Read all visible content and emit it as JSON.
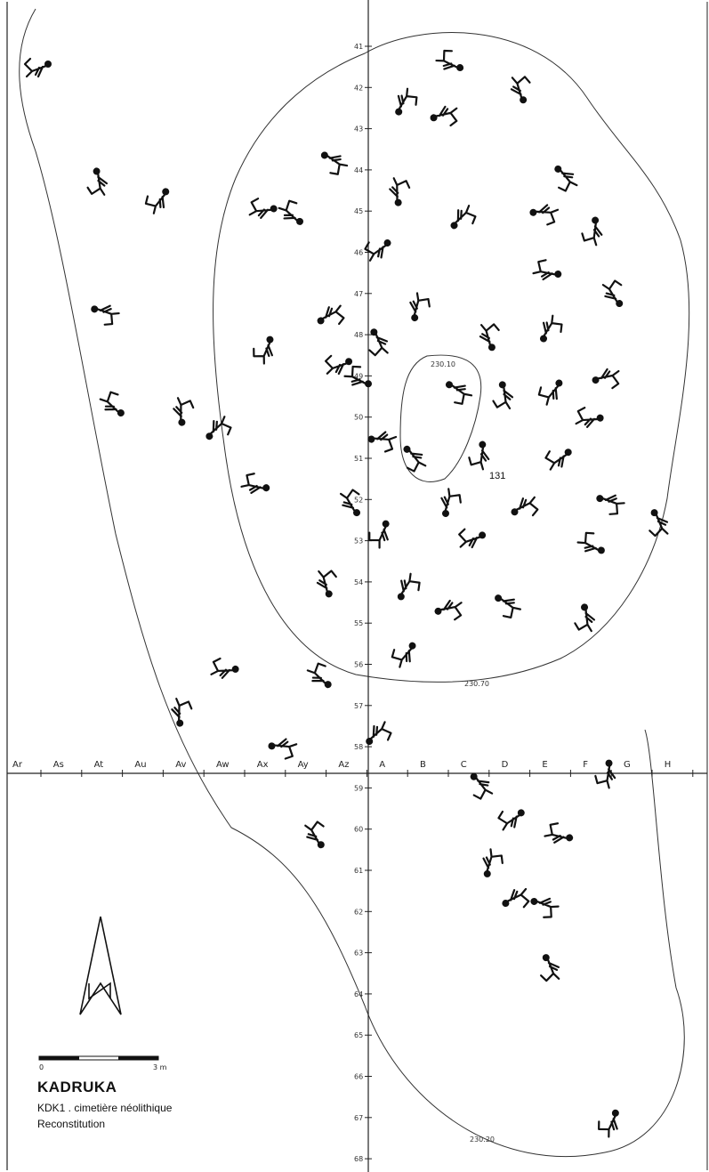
{
  "grid": {
    "rows": [
      "41",
      "42",
      "43",
      "44",
      "45",
      "46",
      "47",
      "48",
      "49",
      "50",
      "51",
      "52",
      "53",
      "54",
      "55",
      "56",
      "57",
      "58",
      "59",
      "60",
      "61",
      "62",
      "63",
      "64",
      "65",
      "66",
      "67",
      "68"
    ],
    "cols": [
      "Ar",
      "As",
      "At",
      "Au",
      "Av",
      "Aw",
      "Ax",
      "Ay",
      "Az",
      "A",
      "B",
      "C",
      "D",
      "E",
      "F",
      "G",
      "H"
    ]
  },
  "contours": {
    "inner_label": "230.10",
    "middle_label": "230.70",
    "outer_label": "230.20"
  },
  "burial_label": "131",
  "scale": {
    "start": "0",
    "end": "3 m"
  },
  "legend": {
    "title": "KADRUKA",
    "subtitle": "KDK1 . cimetière néolithique",
    "caption": "Reconstitution"
  },
  "north_arrow": "north-arrow-icon"
}
